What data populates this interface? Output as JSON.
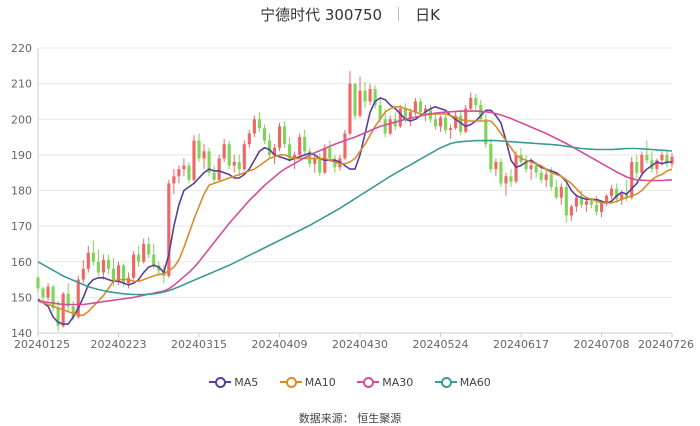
{
  "header": {
    "title": "宁德时代 300750",
    "period": "日K"
  },
  "source": "数据来源：  恒生聚源",
  "colors": {
    "up": "#f06666",
    "down": "#7fd45a",
    "grid": "#e8e8e8",
    "axis": "#cccccc"
  },
  "chart_data": {
    "type": "candlestick",
    "ylim": [
      140,
      220
    ],
    "y_ticks": [
      140,
      150,
      160,
      170,
      180,
      190,
      200,
      210,
      220
    ],
    "x_ticks": [
      {
        "label": "20240125",
        "index": 0
      },
      {
        "label": "20240223",
        "index": 16
      },
      {
        "label": "20240315",
        "index": 32
      },
      {
        "label": "20240409",
        "index": 48
      },
      {
        "label": "20240430",
        "index": 64
      },
      {
        "label": "20240524",
        "index": 80
      },
      {
        "label": "20240617",
        "index": 96
      },
      {
        "label": "20240708",
        "index": 112
      },
      {
        "label": "20240726",
        "index": 126
      }
    ],
    "ohlc": [
      [
        155.6,
        156.0,
        151.5,
        152.5
      ],
      [
        152.5,
        153.0,
        148.5,
        150.0
      ],
      [
        150.0,
        154.0,
        149.0,
        153.0
      ],
      [
        153.0,
        153.5,
        146.0,
        147.0
      ],
      [
        147.0,
        149.0,
        140.5,
        142.0
      ],
      [
        142.0,
        151.5,
        141.5,
        151.0
      ],
      [
        151.0,
        154.0,
        146.0,
        147.5
      ],
      [
        147.5,
        149.0,
        143.5,
        144.5
      ],
      [
        144.5,
        156.0,
        144.0,
        155.0
      ],
      [
        155.0,
        160.5,
        154.0,
        158.0
      ],
      [
        158.0,
        164.5,
        157.0,
        162.5
      ],
      [
        162.5,
        166.0,
        159.0,
        160.0
      ],
      [
        160.0,
        163.5,
        156.0,
        157.0
      ],
      [
        157.0,
        162.0,
        155.0,
        160.5
      ],
      [
        160.5,
        162.0,
        156.5,
        158.0
      ],
      [
        158.0,
        161.0,
        153.0,
        154.5
      ],
      [
        154.5,
        160.0,
        153.5,
        159.0
      ],
      [
        159.0,
        159.5,
        153.0,
        154.0
      ],
      [
        154.0,
        157.0,
        152.5,
        155.5
      ],
      [
        155.5,
        163.0,
        155.0,
        162.0
      ],
      [
        162.0,
        164.5,
        158.5,
        160.0
      ],
      [
        160.0,
        166.5,
        159.5,
        165.0
      ],
      [
        165.0,
        167.0,
        161.0,
        162.0
      ],
      [
        162.0,
        165.0,
        158.0,
        159.0
      ],
      [
        159.0,
        160.0,
        156.0,
        157.5
      ],
      [
        157.5,
        159.0,
        154.0,
        156.0
      ],
      [
        156.0,
        183.0,
        155.5,
        182.0
      ],
      [
        182.0,
        186.0,
        179.0,
        184.0
      ],
      [
        184.0,
        187.0,
        182.0,
        186.0
      ],
      [
        186.0,
        189.0,
        184.0,
        187.0
      ],
      [
        187.0,
        188.0,
        182.0,
        183.0
      ],
      [
        183.0,
        195.5,
        182.5,
        194.0
      ],
      [
        194.0,
        196.0,
        188.0,
        189.0
      ],
      [
        189.0,
        193.0,
        186.0,
        191.0
      ],
      [
        191.0,
        192.0,
        184.0,
        185.0
      ],
      [
        185.0,
        187.0,
        182.0,
        183.0
      ],
      [
        183.0,
        190.0,
        182.5,
        189.0
      ],
      [
        189.0,
        194.5,
        188.0,
        193.0
      ],
      [
        193.0,
        194.0,
        186.0,
        187.0
      ],
      [
        187.0,
        190.0,
        185.0,
        188.0
      ],
      [
        188.0,
        190.0,
        184.0,
        186.0
      ],
      [
        186.0,
        194.0,
        185.5,
        193.0
      ],
      [
        193.0,
        197.0,
        192.0,
        196.0
      ],
      [
        196.0,
        201.0,
        195.0,
        200.0
      ],
      [
        200.0,
        202.0,
        196.5,
        197.5
      ],
      [
        197.5,
        198.5,
        193.0,
        194.0
      ],
      [
        194.0,
        196.0,
        189.0,
        190.0
      ],
      [
        190.0,
        193.0,
        187.5,
        192.0
      ],
      [
        192.0,
        199.0,
        191.0,
        198.0
      ],
      [
        198.0,
        199.5,
        192.0,
        193.0
      ],
      [
        193.0,
        195.0,
        188.0,
        189.0
      ],
      [
        189.0,
        191.0,
        186.0,
        190.0
      ],
      [
        190.0,
        196.0,
        189.5,
        195.0
      ],
      [
        195.0,
        197.0,
        190.0,
        191.0
      ],
      [
        191.0,
        192.0,
        186.5,
        187.5
      ],
      [
        187.5,
        190.0,
        185.0,
        189.0
      ],
      [
        189.0,
        190.5,
        184.0,
        185.0
      ],
      [
        185.0,
        193.0,
        184.5,
        192.0
      ],
      [
        192.0,
        194.0,
        188.0,
        189.0
      ],
      [
        189.0,
        190.0,
        185.0,
        186.5
      ],
      [
        186.5,
        190.0,
        185.5,
        189.0
      ],
      [
        189.0,
        197.0,
        188.5,
        196.0
      ],
      [
        196.0,
        213.5,
        195.5,
        210.0
      ],
      [
        210.0,
        210.0,
        200.0,
        201.0
      ],
      [
        201.0,
        212.0,
        200.5,
        208.0
      ],
      [
        208.0,
        210.5,
        203.0,
        205.0
      ],
      [
        205.0,
        210.0,
        204.0,
        208.5
      ],
      [
        208.5,
        209.5,
        203.0,
        204.0
      ],
      [
        204.0,
        206.0,
        199.0,
        200.0
      ],
      [
        200.0,
        203.0,
        195.0,
        196.0
      ],
      [
        196.0,
        201.0,
        195.5,
        200.0
      ],
      [
        200.0,
        202.0,
        197.0,
        198.0
      ],
      [
        198.0,
        204.0,
        197.5,
        203.0
      ],
      [
        203.0,
        204.5,
        199.0,
        200.0
      ],
      [
        200.0,
        203.0,
        198.0,
        202.0
      ],
      [
        202.0,
        206.0,
        201.0,
        205.0
      ],
      [
        205.0,
        206.0,
        201.0,
        202.0
      ],
      [
        202.0,
        204.0,
        199.5,
        203.0
      ],
      [
        203.0,
        204.0,
        199.0,
        200.0
      ],
      [
        200.0,
        202.0,
        197.0,
        198.0
      ],
      [
        198.0,
        201.0,
        196.5,
        200.5
      ],
      [
        200.5,
        201.5,
        196.0,
        197.0
      ],
      [
        197.0,
        198.5,
        194.5,
        197.5
      ],
      [
        197.5,
        202.0,
        197.0,
        201.0
      ],
      [
        201.0,
        202.5,
        195.5,
        196.5
      ],
      [
        196.5,
        204.0,
        196.0,
        203.0
      ],
      [
        203.0,
        207.5,
        202.0,
        206.0
      ],
      [
        206.0,
        207.0,
        202.5,
        204.0
      ],
      [
        204.0,
        205.5,
        199.5,
        200.0
      ],
      [
        200.0,
        201.5,
        192.0,
        193.0
      ],
      [
        193.0,
        194.5,
        185.0,
        186.0
      ],
      [
        186.0,
        189.0,
        184.0,
        188.0
      ],
      [
        188.0,
        189.0,
        181.0,
        182.0
      ],
      [
        182.0,
        185.0,
        178.5,
        184.0
      ],
      [
        184.0,
        186.0,
        181.0,
        182.5
      ],
      [
        182.5,
        191.0,
        182.0,
        190.0
      ],
      [
        190.0,
        192.0,
        187.0,
        188.0
      ],
      [
        188.0,
        190.0,
        185.0,
        186.0
      ],
      [
        186.0,
        189.0,
        183.0,
        187.0
      ],
      [
        187.0,
        188.0,
        183.5,
        185.0
      ],
      [
        185.0,
        187.0,
        182.0,
        183.0
      ],
      [
        183.0,
        186.0,
        181.0,
        184.5
      ],
      [
        184.5,
        186.5,
        180.0,
        181.0
      ],
      [
        181.0,
        183.0,
        177.5,
        178.0
      ],
      [
        178.0,
        182.0,
        176.0,
        181.0
      ],
      [
        181.0,
        182.0,
        171.0,
        173.0
      ],
      [
        173.0,
        176.0,
        171.5,
        175.5
      ],
      [
        175.5,
        179.0,
        174.0,
        178.0
      ],
      [
        178.0,
        180.0,
        175.0,
        176.0
      ],
      [
        176.0,
        178.0,
        174.0,
        177.0
      ],
      [
        177.0,
        178.0,
        175.0,
        176.0
      ],
      [
        176.0,
        178.5,
        173.0,
        174.0
      ],
      [
        174.0,
        177.0,
        172.5,
        176.5
      ],
      [
        176.5,
        179.0,
        175.5,
        178.5
      ],
      [
        178.5,
        181.5,
        177.5,
        180.5
      ],
      [
        180.5,
        182.0,
        176.5,
        177.5
      ],
      [
        177.5,
        180.0,
        176.0,
        179.0
      ],
      [
        179.0,
        183.0,
        177.0,
        178.0
      ],
      [
        178.0,
        189.5,
        177.5,
        188.0
      ],
      [
        188.0,
        190.0,
        183.5,
        185.0
      ],
      [
        185.0,
        191.0,
        184.0,
        190.0
      ],
      [
        190.0,
        194.0,
        187.5,
        188.5
      ],
      [
        188.5,
        191.0,
        185.0,
        186.0
      ],
      [
        186.0,
        189.0,
        184.5,
        188.5
      ],
      [
        188.5,
        191.0,
        187.0,
        190.0
      ],
      [
        190.0,
        191.5,
        186.5,
        187.5
      ],
      [
        187.5,
        190.5,
        186.5,
        189.5
      ]
    ],
    "series": [
      {
        "name": "MA5",
        "color": "#5a3e98",
        "values": [
          149.5,
          148.5,
          147.5,
          144.5,
          143.0,
          142.5,
          142.5,
          144.5,
          147.0,
          150.0,
          153.5,
          155.0,
          155.5,
          155.5,
          155.0,
          154.5,
          154.5,
          154.0,
          153.5,
          154.0,
          155.0,
          157.0,
          158.5,
          159.0,
          158.5,
          157.0,
          162.0,
          170.0,
          176.0,
          180.0,
          181.0,
          182.0,
          183.5,
          185.0,
          186.0,
          185.5,
          185.5,
          185.0,
          184.5,
          183.5,
          183.5,
          184.5,
          186.0,
          188.5,
          191.0,
          192.0,
          191.5,
          190.0,
          189.5,
          189.0,
          188.5,
          189.0,
          189.5,
          190.0,
          190.5,
          190.0,
          189.0,
          188.5,
          188.5,
          188.5,
          188.0,
          187.0,
          186.0,
          186.0,
          190.0,
          196.0,
          202.0,
          205.0,
          206.0,
          205.5,
          204.0,
          203.0,
          201.5,
          200.0,
          199.5,
          200.0,
          201.0,
          202.0,
          203.0,
          203.5,
          203.0,
          202.5,
          201.0,
          200.0,
          199.0,
          198.0,
          198.5,
          199.5,
          201.0,
          202.5,
          202.5,
          201.0,
          199.0,
          194.0,
          188.5,
          186.5,
          187.0,
          188.0,
          188.5,
          187.5,
          186.5,
          186.0,
          185.5,
          185.0,
          184.0,
          182.5,
          180.0,
          178.5,
          178.0,
          177.5,
          177.5,
          177.5,
          177.0,
          176.5,
          177.0,
          178.5,
          179.5,
          179.0,
          180.5,
          182.0,
          184.5,
          186.0,
          187.0,
          188.0,
          187.5,
          188.0,
          188.0
        ]
      },
      {
        "name": "MA10",
        "color": "#d98c2e",
        "values": [
          149.0,
          148.5,
          148.0,
          147.5,
          147.0,
          146.5,
          146.0,
          145.5,
          145.0,
          145.0,
          146.0,
          147.5,
          149.0,
          150.5,
          152.5,
          154.5,
          155.0,
          155.0,
          155.0,
          154.5,
          154.5,
          155.0,
          155.5,
          156.0,
          156.5,
          156.5,
          157.5,
          158.5,
          160.5,
          164.0,
          168.0,
          172.0,
          175.5,
          179.0,
          181.5,
          182.0,
          182.5,
          183.0,
          183.5,
          184.0,
          184.5,
          185.0,
          185.5,
          186.0,
          187.0,
          188.0,
          189.0,
          189.5,
          190.0,
          190.0,
          189.5,
          189.0,
          189.0,
          189.0,
          189.0,
          189.0,
          189.0,
          189.0,
          188.5,
          188.0,
          187.5,
          187.5,
          188.0,
          189.0,
          191.0,
          193.0,
          195.5,
          198.0,
          200.0,
          202.0,
          203.0,
          203.5,
          203.5,
          203.0,
          202.5,
          202.0,
          201.5,
          201.5,
          201.5,
          201.5,
          201.5,
          201.5,
          201.0,
          200.5,
          200.0,
          199.5,
          199.5,
          199.5,
          199.5,
          199.5,
          199.5,
          198.0,
          196.0,
          194.0,
          192.0,
          190.0,
          189.0,
          188.5,
          188.0,
          187.5,
          187.0,
          186.0,
          185.0,
          184.5,
          184.0,
          183.0,
          182.0,
          180.5,
          179.0,
          178.0,
          177.5,
          177.0,
          176.5,
          176.5,
          176.5,
          177.0,
          177.5,
          178.0,
          178.5,
          179.0,
          180.0,
          181.5,
          183.0,
          184.0,
          184.5,
          185.5,
          186.0
        ]
      },
      {
        "name": "MA30",
        "color": "#d24f9b",
        "values": [
          149.0,
          148.8,
          148.6,
          148.4,
          148.2,
          148.0,
          148.0,
          148.0,
          148.0,
          148.0,
          148.2,
          148.4,
          148.6,
          148.8,
          149.0,
          149.2,
          149.4,
          149.6,
          149.8,
          150.0,
          150.3,
          150.6,
          150.9,
          151.2,
          151.5,
          151.8,
          152.4,
          153.4,
          154.6,
          155.8,
          157.0,
          158.4,
          160.0,
          161.8,
          163.6,
          165.4,
          167.2,
          169.0,
          170.8,
          172.4,
          174.0,
          175.6,
          177.2,
          178.6,
          180.0,
          181.4,
          182.6,
          183.8,
          185.0,
          186.0,
          186.8,
          187.6,
          188.4,
          189.2,
          190.0,
          190.6,
          191.2,
          191.8,
          192.4,
          193.0,
          193.5,
          194.0,
          194.5,
          195.0,
          195.6,
          196.2,
          196.8,
          197.4,
          198.0,
          198.4,
          198.8,
          199.2,
          199.6,
          200.0,
          200.3,
          200.6,
          200.9,
          201.2,
          201.5,
          201.7,
          201.9,
          202.0,
          202.1,
          202.2,
          202.3,
          202.3,
          202.3,
          202.3,
          202.2,
          202.1,
          201.9,
          201.6,
          201.2,
          200.7,
          200.2,
          199.6,
          199.0,
          198.4,
          197.8,
          197.2,
          196.6,
          196.0,
          195.3,
          194.6,
          193.9,
          193.2,
          192.4,
          191.6,
          190.8,
          190.0,
          189.2,
          188.4,
          187.6,
          186.8,
          186.0,
          185.2,
          184.5,
          183.8,
          183.3,
          183.0,
          182.9,
          182.8,
          182.8,
          182.8,
          182.8,
          182.9,
          183.0
        ]
      },
      {
        "name": "MA60",
        "color": "#3d9a96",
        "values": [
          160.0,
          159.2,
          158.4,
          157.6,
          156.8,
          156.0,
          155.4,
          154.8,
          154.2,
          153.6,
          153.0,
          152.6,
          152.2,
          151.9,
          151.6,
          151.4,
          151.2,
          151.0,
          150.9,
          150.8,
          150.8,
          150.8,
          150.9,
          151.0,
          151.2,
          151.5,
          151.9,
          152.4,
          153.0,
          153.6,
          154.2,
          154.8,
          155.4,
          156.0,
          156.6,
          157.2,
          157.8,
          158.4,
          159.0,
          159.7,
          160.4,
          161.1,
          161.8,
          162.5,
          163.2,
          163.9,
          164.6,
          165.3,
          166.0,
          166.7,
          167.4,
          168.1,
          168.8,
          169.5,
          170.2,
          171.0,
          171.8,
          172.6,
          173.4,
          174.2,
          175.0,
          175.9,
          176.8,
          177.7,
          178.6,
          179.5,
          180.4,
          181.3,
          182.2,
          183.1,
          184.0,
          184.8,
          185.6,
          186.4,
          187.2,
          188.0,
          188.8,
          189.6,
          190.4,
          191.2,
          192.0,
          192.6,
          193.2,
          193.5,
          193.7,
          193.8,
          193.9,
          194.0,
          194.0,
          194.0,
          194.0,
          194.0,
          193.9,
          193.8,
          193.7,
          193.6,
          193.5,
          193.4,
          193.3,
          193.2,
          193.1,
          193.0,
          192.9,
          192.8,
          192.6,
          192.4,
          192.2,
          192.0,
          191.8,
          191.7,
          191.6,
          191.5,
          191.5,
          191.5,
          191.5,
          191.6,
          191.7,
          191.8,
          191.8,
          191.8,
          191.7,
          191.6,
          191.5,
          191.4,
          191.3,
          191.2,
          191.1
        ]
      }
    ]
  }
}
